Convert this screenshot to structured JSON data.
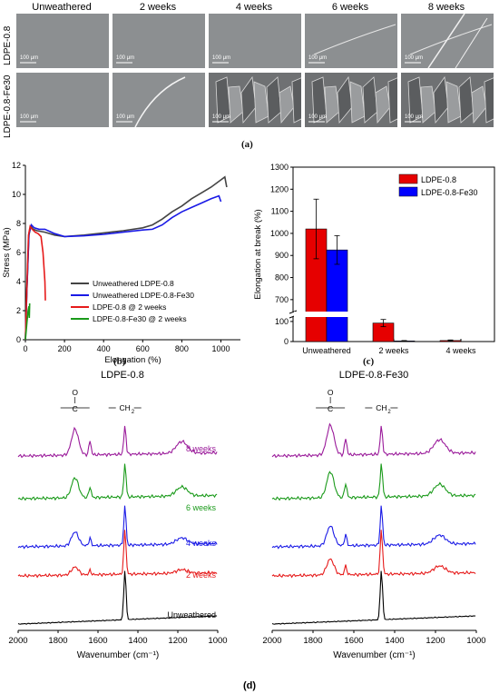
{
  "panel_a": {
    "label": "(a)",
    "column_headers": [
      "Unweathered",
      "2 weeks",
      "4 weeks",
      "6 weeks",
      "8 weeks"
    ],
    "row_labels": [
      "LDPE-0.8",
      "LDPE-0.8-Fe30"
    ],
    "scale_text": "100 μm"
  },
  "panel_b": {
    "label": "(b)"
  },
  "panel_c": {
    "label": "(c)"
  },
  "panel_d": {
    "label": "(d)",
    "left_title": "LDPE-0.8",
    "right_title": "LDPE-0.8-Fe30",
    "co_group": "C=O",
    "ch2_group": "CH2",
    "spectrum_labels": [
      "8 weeks",
      "6 weeks",
      "4 weeks",
      "2 weeks",
      "Unweathered"
    ]
  },
  "chart_data": [
    {
      "type": "line",
      "xlabel": "Elongation (%)",
      "ylabel": "Stress (MPa)",
      "xlim": [
        0,
        1100
      ],
      "ylim": [
        0,
        12
      ],
      "xticks": [
        0,
        200,
        400,
        600,
        800,
        1000
      ],
      "yticks": [
        0,
        2,
        4,
        6,
        8,
        10,
        12
      ],
      "legend_position": "bottom-right",
      "series": [
        {
          "name": "Unweathered LDPE-0.8",
          "color": "#444444",
          "x": [
            0,
            8,
            18,
            28,
            40,
            60,
            100,
            150,
            200,
            300,
            400,
            500,
            600,
            650,
            700,
            750,
            800,
            850,
            900,
            950,
            1000,
            1020,
            1030
          ],
          "y": [
            0,
            3.5,
            7.2,
            7.8,
            7.6,
            7.5,
            7.4,
            7.2,
            7.1,
            7.2,
            7.35,
            7.5,
            7.7,
            7.9,
            8.3,
            8.8,
            9.2,
            9.7,
            10.1,
            10.5,
            11.0,
            11.2,
            10.5
          ]
        },
        {
          "name": "Unweathered LDPE-0.8-Fe30",
          "color": "#1a1ae6",
          "x": [
            0,
            8,
            18,
            30,
            45,
            70,
            100,
            150,
            200,
            300,
            400,
            500,
            600,
            650,
            700,
            750,
            800,
            850,
            900,
            950,
            990,
            1000
          ],
          "y": [
            0,
            3.5,
            7.3,
            7.9,
            7.7,
            7.6,
            7.6,
            7.3,
            7.1,
            7.15,
            7.25,
            7.4,
            7.55,
            7.6,
            7.9,
            8.4,
            8.8,
            9.1,
            9.4,
            9.7,
            9.9,
            9.5
          ]
        },
        {
          "name": "LDPE-0.8 @ 2 weeks",
          "color": "#e61a1a",
          "x": [
            0,
            8,
            16,
            24,
            35,
            50,
            65,
            80,
            90,
            100,
            102
          ],
          "y": [
            0,
            3.8,
            7.2,
            7.8,
            7.6,
            7.4,
            7.3,
            7.1,
            6.0,
            4.0,
            2.7
          ]
        },
        {
          "name": "LDPE-0.8-Fe30 @ 2 weeks",
          "color": "#1a9a1a",
          "x": [
            0,
            8,
            14,
            18,
            20,
            22
          ],
          "y": [
            0,
            1.2,
            2.0,
            2.3,
            1.5,
            2.5
          ]
        }
      ]
    },
    {
      "type": "bar",
      "ylabel": "Elongation at break (%)",
      "categories": [
        "Unweathered",
        "2 weeks",
        "4 weeks"
      ],
      "yticks_upper": [
        700,
        800,
        900,
        1000,
        1100,
        1200,
        1300
      ],
      "yticks_lower": [
        0,
        100
      ],
      "axis_break": [
        100,
        650
      ],
      "legend_position": "top-right",
      "series": [
        {
          "name": "LDPE-0.8",
          "color": "#e60000",
          "values": [
            1020,
            92,
            5
          ],
          "errors": [
            135,
            18,
            3
          ]
        },
        {
          "name": "LDPE-0.8-Fe30",
          "color": "#0000ff",
          "values": [
            925,
            3,
            0
          ],
          "errors": [
            65,
            2,
            0
          ]
        }
      ]
    },
    {
      "type": "line",
      "xlabel": "Wavenumber (cm⁻¹)",
      "xlim": [
        2000,
        1000
      ],
      "xticks": [
        2000,
        1800,
        1600,
        1400,
        1200,
        1000
      ],
      "series": [
        {
          "name": "Unweathered",
          "color": "#000000"
        },
        {
          "name": "2 weeks",
          "color": "#e61a1a"
        },
        {
          "name": "4 weeks",
          "color": "#1a1ae6"
        },
        {
          "name": "6 weeks",
          "color": "#1a9a1a"
        },
        {
          "name": "8 weeks",
          "color": "#9a1a9a"
        }
      ]
    }
  ]
}
